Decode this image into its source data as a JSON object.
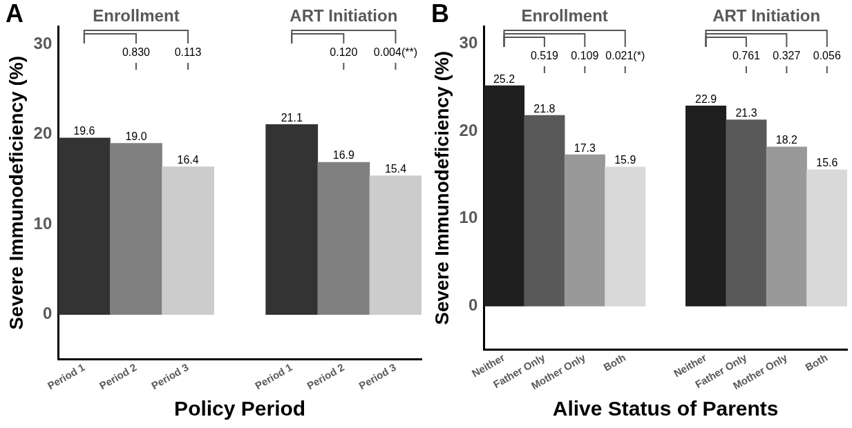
{
  "chart_data": [
    {
      "type": "bar",
      "title": "A",
      "xlabel": "Policy Period",
      "ylabel": "Severe Immunodeficiency (%)",
      "categories": [
        "Period 1",
        "Period 2",
        "Period 3",
        null,
        "Period 1",
        "Period 2",
        "Period 3"
      ],
      "values": [
        19.6,
        19.0,
        16.4,
        null,
        21.1,
        16.9,
        15.4
      ],
      "value_labels": [
        "19.6",
        "19.0",
        "16.4",
        null,
        "21.1",
        "16.9",
        "15.4"
      ],
      "colors": [
        "#333333",
        "#808080",
        "#cccccc",
        null,
        "#333333",
        "#808080",
        "#cccccc"
      ],
      "annotations": [
        "Enrollment",
        "0.830",
        "0.113",
        "ART Initiation",
        "0.120",
        "0.004(**)"
      ],
      "ylim": [
        -5,
        32
      ],
      "yticks": [
        0,
        10,
        20,
        30
      ],
      "grid": false
    },
    {
      "type": "bar",
      "title": "B",
      "xlabel": "Alive Status of Parents",
      "ylabel": "Severe Immunodeficiency (%)",
      "categories": [
        "Neither",
        "Father Only",
        "Mother Only",
        "Both",
        null,
        "Neither",
        "Father Only",
        "Mother Only",
        "Both"
      ],
      "values": [
        25.2,
        21.8,
        17.3,
        15.9,
        null,
        22.9,
        21.3,
        18.2,
        15.6
      ],
      "value_labels": [
        "25.2",
        "21.8",
        "17.3",
        "15.9",
        null,
        "22.9",
        "21.3",
        "18.2",
        "15.6"
      ],
      "colors": [
        "#1f1f1f",
        "#595959",
        "#999999",
        "#d9d9d9",
        null,
        "#1f1f1f",
        "#595959",
        "#999999",
        "#d9d9d9"
      ],
      "annotations": [
        "Enrollment",
        "0.519",
        "0.109",
        "0.021(*)",
        "ART Initiation",
        "0.761",
        "0.327",
        "0.056"
      ],
      "ylim": [
        -5,
        32
      ],
      "yticks": [
        0,
        10,
        20,
        30
      ],
      "grid": false
    }
  ]
}
